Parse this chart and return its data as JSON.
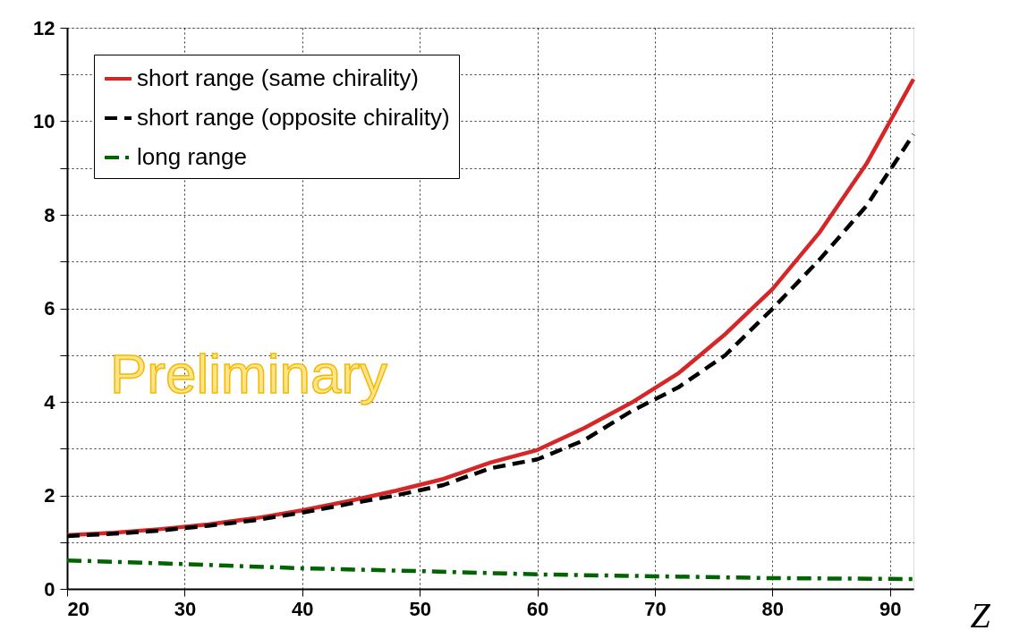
{
  "chart_data": {
    "type": "line",
    "xlabel": "Z",
    "xlim": [
      20,
      92
    ],
    "xticks": [
      20,
      30,
      40,
      50,
      60,
      70,
      80,
      90
    ],
    "ylim": [
      0,
      12
    ],
    "yticks": [
      0,
      {
        "value": 1,
        "label": null
      },
      2,
      {
        "value": 3,
        "label": null
      },
      4,
      {
        "value": 5,
        "label": null
      },
      6,
      {
        "value": 7,
        "label": null
      },
      8,
      {
        "value": 9,
        "label": null
      },
      10,
      {
        "value": 11,
        "label": null
      },
      12
    ],
    "grid": true,
    "legend": "top left",
    "marker": "none",
    "annotations": [
      "Preliminary"
    ],
    "series": [
      {
        "name": "short range (same chirality)",
        "color": "#d62728",
        "line_style": "solid",
        "x": [
          20,
          24,
          28,
          32,
          36,
          40,
          44,
          48,
          52,
          56,
          60,
          64,
          68,
          72,
          76,
          80,
          84,
          88,
          92
        ],
        "values": [
          1.15,
          1.2,
          1.28,
          1.38,
          1.51,
          1.68,
          1.88,
          2.1,
          2.35,
          2.7,
          2.97,
          3.44,
          3.98,
          4.61,
          5.45,
          6.41,
          7.62,
          9.09,
          10.9
        ]
      },
      {
        "name": "short range (opposite chirality)",
        "color": "#000000",
        "line_style": "dashed",
        "x": [
          20,
          24,
          28,
          32,
          36,
          40,
          44,
          48,
          52,
          56,
          60,
          64,
          68,
          72,
          76,
          80,
          84,
          88,
          92
        ],
        "values": [
          1.13,
          1.18,
          1.25,
          1.35,
          1.47,
          1.63,
          1.82,
          2.0,
          2.22,
          2.58,
          2.77,
          3.18,
          3.8,
          4.31,
          5.0,
          5.99,
          7.04,
          8.19,
          9.72
        ]
      },
      {
        "name": "long range",
        "color": "#006400",
        "line_style": "dashdot",
        "x": [
          20,
          30,
          40,
          50,
          60,
          70,
          80,
          92
        ],
        "values": [
          0.61,
          0.53,
          0.44,
          0.38,
          0.31,
          0.27,
          0.23,
          0.21
        ]
      }
    ]
  }
}
